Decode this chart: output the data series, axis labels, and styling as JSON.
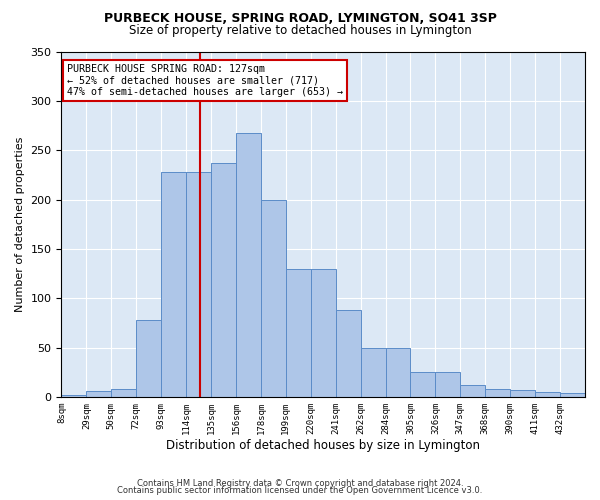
{
  "title1": "PURBECK HOUSE, SPRING ROAD, LYMINGTON, SO41 3SP",
  "title2": "Size of property relative to detached houses in Lymington",
  "xlabel": "Distribution of detached houses by size in Lymington",
  "ylabel": "Number of detached properties",
  "bin_labels": [
    "8sqm",
    "29sqm",
    "50sqm",
    "72sqm",
    "93sqm",
    "114sqm",
    "135sqm",
    "156sqm",
    "178sqm",
    "199sqm",
    "220sqm",
    "241sqm",
    "262sqm",
    "284sqm",
    "305sqm",
    "326sqm",
    "347sqm",
    "368sqm",
    "390sqm",
    "411sqm",
    "432sqm"
  ],
  "bar_heights": [
    2,
    6,
    8,
    78,
    228,
    228,
    237,
    267,
    200,
    130,
    130,
    88,
    50,
    50,
    25,
    25,
    12,
    8,
    7,
    5,
    4
  ],
  "bar_color": "#aec6e8",
  "bar_edge_color": "#5b8cc8",
  "property_size_idx": 5.57,
  "vline_color": "#cc0000",
  "annotation_text": "PURBECK HOUSE SPRING ROAD: 127sqm\n← 52% of detached houses are smaller (717)\n47% of semi-detached houses are larger (653) →",
  "annotation_box_color": "#ffffff",
  "annotation_box_edge": "#cc0000",
  "ylim": [
    0,
    350
  ],
  "yticks": [
    0,
    50,
    100,
    150,
    200,
    250,
    300,
    350
  ],
  "background_color": "#dce8f5",
  "footer1": "Contains HM Land Registry data © Crown copyright and database right 2024.",
  "footer2": "Contains public sector information licensed under the Open Government Licence v3.0."
}
